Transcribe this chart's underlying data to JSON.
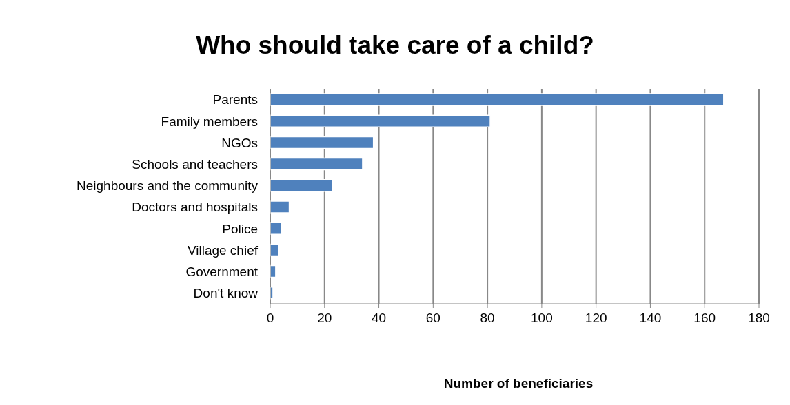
{
  "chart_data": {
    "type": "bar",
    "orientation": "horizontal",
    "title": "Who should take care of a child?",
    "xlabel": "Number of beneficiaries",
    "categories": [
      "Parents",
      "Family members",
      "NGOs",
      "Schools and teachers",
      "Neighbours and the community",
      "Doctors and hospitals",
      "Police",
      "Village chief",
      "Government",
      "Don't know"
    ],
    "values": [
      167,
      81,
      38,
      34,
      23,
      7,
      4,
      3,
      2,
      1
    ],
    "color": "#4f81bd",
    "xlim": [
      0,
      180
    ],
    "xticks": [
      0,
      20,
      40,
      60,
      80,
      100,
      120,
      140,
      160,
      180
    ],
    "grid": "x"
  }
}
